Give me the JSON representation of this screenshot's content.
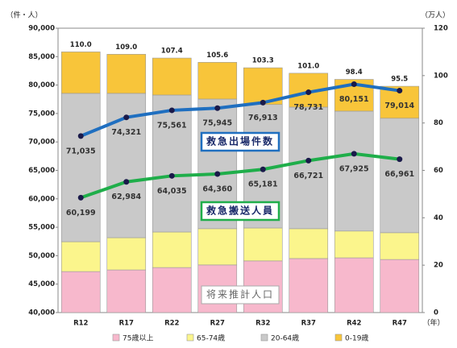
{
  "chart_data": {
    "type": "bar",
    "categories": [
      "R12",
      "R17",
      "R22",
      "R27",
      "R32",
      "R37",
      "R42",
      "R47"
    ],
    "x_unit": "（年）",
    "y_unit": "（件・人）",
    "y2_unit": "（万人）",
    "ylim": [
      40000,
      90000
    ],
    "yticks": [
      {
        "value": 40000,
        "label": "40,000"
      },
      {
        "value": 45000,
        "label": "45,000"
      },
      {
        "value": 50000,
        "label": "50,000"
      },
      {
        "value": 55000,
        "label": "55,000"
      },
      {
        "value": 60000,
        "label": "60,000"
      },
      {
        "value": 65000,
        "label": "65,000"
      },
      {
        "value": 70000,
        "label": "70,000"
      },
      {
        "value": 75000,
        "label": "75,000"
      },
      {
        "value": 80000,
        "label": "80,000"
      },
      {
        "value": 85000,
        "label": "85,000"
      },
      {
        "value": 90000,
        "label": "90,000"
      }
    ],
    "y2lim": [
      0,
      120
    ],
    "y2ticks": [
      0,
      20,
      40,
      60,
      80,
      100,
      120
    ],
    "total_labels": [
      "110.0",
      "109.0",
      "107.4",
      "105.6",
      "103.3",
      "101.0",
      "98.4",
      "95.5"
    ],
    "annotations": [
      "救急出場件数",
      "救急搬送人員",
      "将来推計人口"
    ],
    "series": [
      {
        "name": "75歳以上",
        "type": "bar",
        "axis": "y2",
        "color": "#f7b8cc",
        "values": [
          17.3,
          18.0,
          19.0,
          20.1,
          21.8,
          22.8,
          23.1,
          22.4
        ]
      },
      {
        "name": "65-74歳",
        "type": "bar",
        "axis": "y2",
        "color": "#fbf58c",
        "values": [
          12.6,
          13.6,
          15.0,
          15.3,
          13.9,
          12.6,
          11.3,
          11.3
        ]
      },
      {
        "name": "20-64歳",
        "type": "bar",
        "axis": "y2",
        "color": "#c9c9c9",
        "values": [
          62.6,
          60.9,
          57.8,
          54.7,
          52.1,
          51.3,
          50.6,
          48.3
        ]
      },
      {
        "name": "0-19歳",
        "type": "bar",
        "axis": "y2",
        "color": "#f8c53a",
        "values": [
          17.5,
          16.5,
          15.6,
          15.5,
          15.5,
          14.3,
          13.4,
          13.5
        ]
      },
      {
        "name": "救急出場件数",
        "type": "line",
        "axis": "y",
        "color": "#1f6fc0",
        "values": [
          71035,
          74321,
          75561,
          75945,
          76913,
          78731,
          80151,
          79014
        ],
        "value_labels": [
          "71,035",
          "74,321",
          "75,561",
          "75,945",
          "76,913",
          "78,731",
          "80,151",
          "79,014"
        ]
      },
      {
        "name": "救急搬送人員",
        "type": "line",
        "axis": "y",
        "color": "#1fae4a",
        "values": [
          60199,
          62984,
          64035,
          64360,
          65181,
          66721,
          67925,
          66961
        ],
        "value_labels": [
          "60,199",
          "62,984",
          "64,035",
          "64,360",
          "65,181",
          "66,721",
          "67,925",
          "66,961"
        ]
      }
    ]
  }
}
